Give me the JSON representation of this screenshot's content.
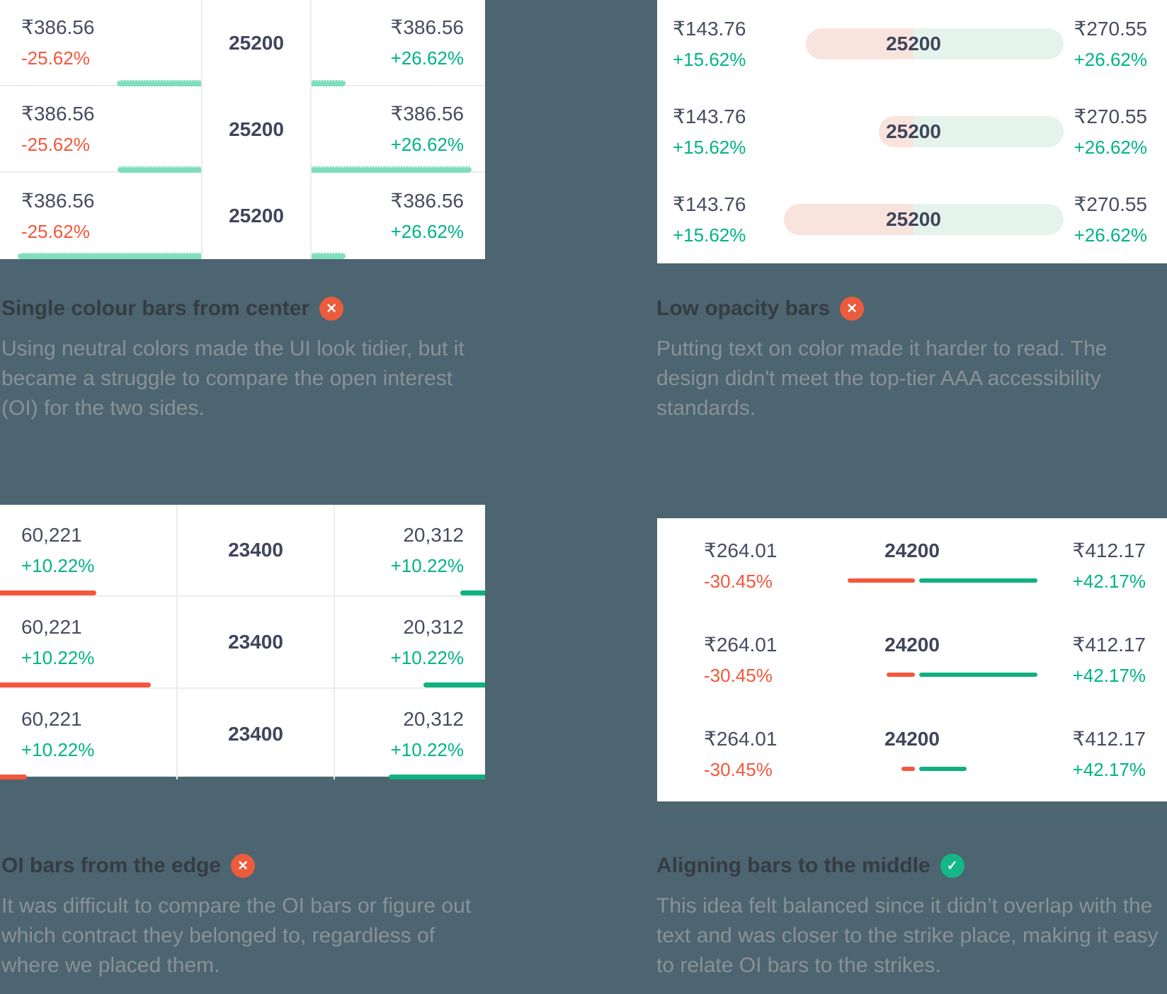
{
  "colors": {
    "background": "#4C6570",
    "card": "#FFFFFF",
    "positive_green": "#00B386",
    "negative_red": "#F4573B",
    "mint_bar": "#7EDEBE",
    "edge_bar_red": "#F4573B",
    "edge_bar_green": "#10B07F",
    "pill_put_tint": "#F9E3DD",
    "pill_call_tint": "#E4F4EC",
    "reject_badge": "#EB5B3C",
    "approve_badge": "#14B886",
    "heading_text": "#363C42",
    "body_text": "#8A9196",
    "price_text": "#474C60",
    "strike_text": "#3F455B"
  },
  "icons": {
    "cross": "✕",
    "check": "✓"
  },
  "panels": [
    {
      "heading": "Single colour bars from center",
      "verdict": "rejected",
      "body": "Using neutral colors made the UI look tidier, but it became a struggle to compare the open interest (OI) for the two sides.",
      "rows": [
        {
          "put_price": "₹386.56",
          "put_change": "-25.62%",
          "strike": "25200",
          "call_price": "₹386.56",
          "call_change": "+26.62%",
          "put_bar": 119,
          "call_bar": 48
        },
        {
          "put_price": "₹386.56",
          "put_change": "-25.62%",
          "strike": "25200",
          "call_price": "₹386.56",
          "call_change": "+26.62%",
          "put_bar": 118,
          "call_bar": 226
        },
        {
          "put_price": "₹386.56",
          "put_change": "-25.62%",
          "strike": "25200",
          "call_price": "₹386.56",
          "call_change": "+26.62%",
          "put_bar": 259,
          "call_bar": 48
        }
      ]
    },
    {
      "heading": "Low opacity bars",
      "verdict": "rejected",
      "body": "Putting text on color made it harder to read. The design didn't meet the top-tier AAA accessibility standards.",
      "rows": [
        {
          "put_price": "₹143.76",
          "put_change": "+15.62%",
          "strike": "25200",
          "call_price": "₹270.55",
          "call_change": "+26.62%",
          "put_bar": 152,
          "call_bar": 212
        },
        {
          "put_price": "₹143.76",
          "put_change": "+15.62%",
          "strike": "25200",
          "call_price": "₹270.55",
          "call_change": "+26.62%",
          "put_bar": 49,
          "call_bar": 212
        },
        {
          "put_price": "₹143.76",
          "put_change": "+15.62%",
          "strike": "25200",
          "call_price": "₹270.55",
          "call_change": "+26.62%",
          "put_bar": 183,
          "call_bar": 212
        }
      ]
    },
    {
      "heading": "OI bars from the edge",
      "verdict": "rejected",
      "body": "It was difficult to compare the OI bars or figure out which contract they belonged to, regardless of where we placed them.",
      "rows": [
        {
          "put_oi": "60,221",
          "put_change": "+10.22%",
          "strike": "23400",
          "call_oi": "20,312",
          "call_change": "+10.22%",
          "put_bar": 136,
          "call_bar": 35
        },
        {
          "put_oi": "60,221",
          "put_change": "+10.22%",
          "strike": "23400",
          "call_oi": "20,312",
          "call_change": "+10.22%",
          "put_bar": 213,
          "call_bar": 87
        },
        {
          "put_oi": "60,221",
          "put_change": "+10.22%",
          "strike": "23400",
          "call_oi": "20,312",
          "call_change": "+10.22%",
          "put_bar": 38,
          "call_bar": 136
        }
      ]
    },
    {
      "heading": "Aligning bars to the middle",
      "verdict": "approved",
      "body": "This idea felt balanced since it didn’t overlap with the text and was closer to the strike place, making it easy to relate OI bars to the strikes.",
      "rows": [
        {
          "put_price": "₹264.01",
          "put_change": "-30.45%",
          "strike": "24200",
          "call_price": "₹412.17",
          "call_change": "+42.17%",
          "put_bar": 95,
          "call_bar": 167
        },
        {
          "put_price": "₹264.01",
          "put_change": "-30.45%",
          "strike": "24200",
          "call_price": "₹412.17",
          "call_change": "+42.17%",
          "put_bar": 40,
          "call_bar": 167
        },
        {
          "put_price": "₹264.01",
          "put_change": "-30.45%",
          "strike": "24200",
          "call_price": "₹412.17",
          "call_change": "+42.17%",
          "put_bar": 19,
          "call_bar": 67
        }
      ]
    }
  ]
}
